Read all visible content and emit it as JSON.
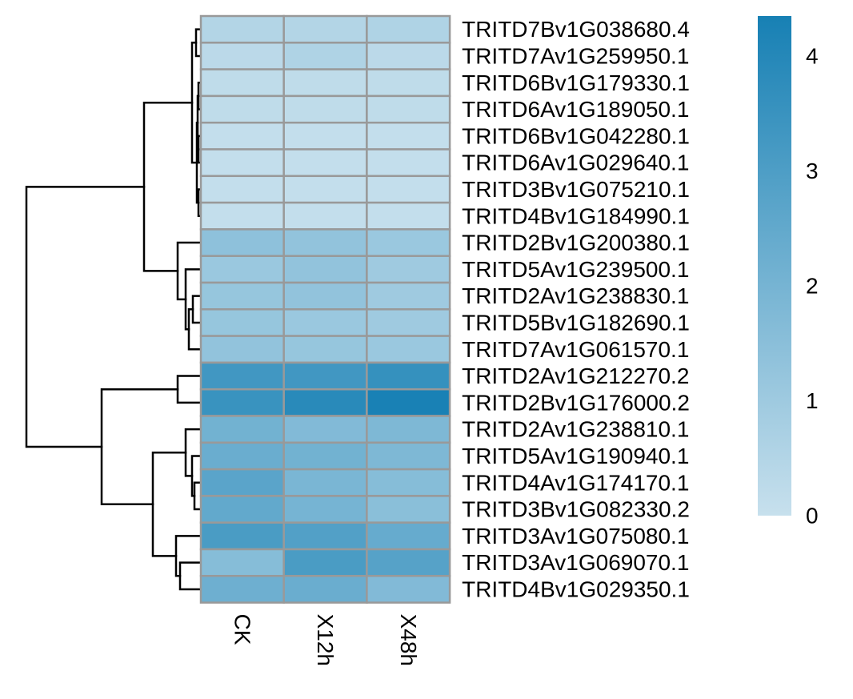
{
  "chart_data": {
    "type": "heatmap",
    "title": "",
    "columns": [
      "CK",
      "X12h",
      "X48h"
    ],
    "rows": [
      "TRITD7Bv1G038680.4",
      "TRITD7Av1G259950.1",
      "TRITD6Bv1G179330.1",
      "TRITD6Av1G189050.1",
      "TRITD6Bv1G042280.1",
      "TRITD6Av1G029640.1",
      "TRITD3Bv1G075210.1",
      "TRITD4Bv1G184990.1",
      "TRITD2Bv1G200380.1",
      "TRITD5Av1G239500.1",
      "TRITD2Av1G238830.1",
      "TRITD5Bv1G182690.1",
      "TRITD7Av1G061570.1",
      "TRITD2Av1G212270.2",
      "TRITD2Bv1G176000.2",
      "TRITD2Av1G238810.1",
      "TRITD5Av1G190940.1",
      "TRITD4Av1G174170.1",
      "TRITD3Bv1G082330.2",
      "TRITD3Av1G075080.1",
      "TRITD3Av1G069070.1",
      "TRITD4Bv1G029350.1"
    ],
    "values": [
      [
        0.5,
        0.5,
        0.6
      ],
      [
        0.3,
        0.6,
        0.3
      ],
      [
        0.2,
        0.2,
        0.2
      ],
      [
        0.2,
        0.2,
        0.2
      ],
      [
        0.1,
        0.1,
        0.1
      ],
      [
        0.1,
        0.1,
        0.1
      ],
      [
        0.1,
        0.1,
        0.1
      ],
      [
        0.1,
        0.1,
        0.1
      ],
      [
        1.4,
        1.3,
        1.1
      ],
      [
        1.1,
        1.3,
        1.0
      ],
      [
        1.2,
        1.3,
        1.0
      ],
      [
        1.2,
        1.1,
        1.0
      ],
      [
        1.3,
        1.2,
        1.1
      ],
      [
        3.3,
        3.3,
        3.6
      ],
      [
        3.5,
        3.9,
        4.3
      ],
      [
        2.1,
        1.7,
        1.8
      ],
      [
        2.3,
        2.1,
        1.8
      ],
      [
        2.7,
        1.9,
        1.6
      ],
      [
        2.5,
        2.0,
        1.5
      ],
      [
        3.1,
        2.9,
        2.4
      ],
      [
        1.6,
        3.1,
        2.8
      ],
      [
        2.2,
        2.3,
        1.7
      ]
    ],
    "color_scale": {
      "min": 0,
      "max": 4.35,
      "low_color": "#c7e0ed",
      "high_color": "#1780b4",
      "ticks": [
        0,
        1,
        2,
        3,
        4
      ],
      "tick_labels": [
        "0",
        "1",
        "2",
        "3",
        "4"
      ]
    },
    "cell_border_color": "#999999",
    "row_dendrogram": true,
    "legend_placement": "right"
  }
}
